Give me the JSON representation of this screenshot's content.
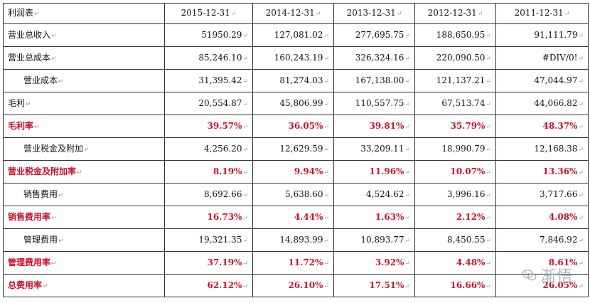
{
  "table": {
    "corner": "利润表",
    "headers": [
      "2015-12-31",
      "2014-12-31",
      "2013-12-31",
      "2012-12-31",
      "2011-12-31"
    ],
    "rows": [
      {
        "label": "营业总收入",
        "indent": false,
        "pct": false,
        "values": [
          "51950.29",
          "127,081.02",
          "277,695.75",
          "188,650.95",
          "91,111.79"
        ]
      },
      {
        "label": "营业总成本",
        "indent": false,
        "pct": false,
        "values": [
          "85,246.10",
          "160,243.19",
          "326,324.16",
          "220,090.50",
          "#DIV/0!"
        ]
      },
      {
        "label": "营业成本",
        "indent": true,
        "pct": false,
        "values": [
          "31,395.42",
          "81,274.03",
          "167,138.00",
          "121,137.21",
          "47,044.97"
        ]
      },
      {
        "label": "毛利",
        "indent": false,
        "pct": false,
        "values": [
          "20,554.87",
          "45,806.99",
          "110,557.75",
          "67,513.74",
          "44,066.82"
        ]
      },
      {
        "label": "毛利率",
        "indent": false,
        "pct": true,
        "values": [
          "39.57%",
          "36.05%",
          "39.81%",
          "35.79%",
          "48.37%"
        ]
      },
      {
        "label": "营业税金及附加",
        "indent": true,
        "pct": false,
        "values": [
          "4,256.20",
          "12,629.59",
          "33,209.11",
          "18,990.79",
          "12,168.38"
        ]
      },
      {
        "label": "营业税金及附加率",
        "indent": false,
        "pct": true,
        "values": [
          "8.19%",
          "9.94%",
          "11.96%",
          "10.07%",
          "13.36%"
        ]
      },
      {
        "label": "销售费用",
        "indent": true,
        "pct": false,
        "values": [
          "8,692.66",
          "5,638.60",
          "4,524.62",
          "3,996.16",
          "3,717.66"
        ]
      },
      {
        "label": "销售费用率",
        "indent": false,
        "pct": true,
        "values": [
          "16.73%",
          "4.44%",
          "1.63%",
          "2.12%",
          "4.08%"
        ]
      },
      {
        "label": "管理费用",
        "indent": true,
        "pct": false,
        "values": [
          "19,321.35",
          "14,893.99",
          "10,893.77",
          "8,450.55",
          "7,846.92"
        ]
      },
      {
        "label": "管理费用率",
        "indent": false,
        "pct": true,
        "values": [
          "37.19%",
          "11.72%",
          "3.92%",
          "4.48%",
          "8.61%"
        ]
      },
      {
        "label": "总费用率",
        "indent": false,
        "pct": true,
        "values": [
          "62.12%",
          "26.10%",
          "17.51%",
          "16.66%",
          "26.05%"
        ]
      }
    ]
  },
  "watermark": {
    "text": "渐悟",
    "icon": "wechat-icon"
  },
  "colors": {
    "percent": "#c8102e",
    "border": "#333333"
  }
}
